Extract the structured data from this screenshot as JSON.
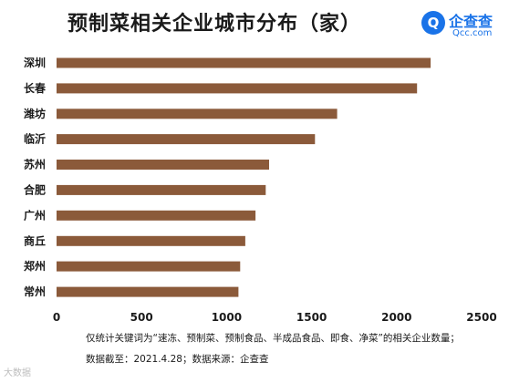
{
  "watermark": "大数据",
  "logo": {
    "name": "企查查",
    "domain": "Qcc.com",
    "mark": "Q"
  },
  "notes": {
    "line1": "仅统计关键词为“速冻、预制菜、预制食品、半成品食品、即食、净菜”的相关企业数量；",
    "line2": "数据截至：2021.4.28；数据来源：企查查"
  },
  "colors": {
    "bar": "#8b5a3a",
    "logo": "#1a73e8"
  },
  "chart_data": {
    "type": "bar",
    "orientation": "horizontal",
    "title": "预制菜相关企业城市分布（家）",
    "categories": [
      "深圳",
      "长春",
      "潍坊",
      "临沂",
      "苏州",
      "合肥",
      "广州",
      "商丘",
      "郑州",
      "常州"
    ],
    "values": [
      2200,
      2120,
      1650,
      1520,
      1250,
      1230,
      1170,
      1110,
      1080,
      1070
    ],
    "xlim": [
      0,
      2500
    ],
    "xticks": [
      0,
      500,
      1000,
      1500,
      2000,
      2500
    ],
    "xlabel": "",
    "ylabel": "",
    "grid": false,
    "legend": "none"
  }
}
